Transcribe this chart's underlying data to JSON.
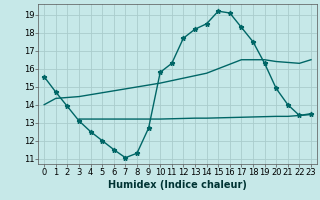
{
  "title": "",
  "xlabel": "Humidex (Indice chaleur)",
  "bg_color": "#c6e8e8",
  "grid_color": "#aacccc",
  "line_color": "#006666",
  "xlim": [
    -0.5,
    23.5
  ],
  "ylim": [
    10.7,
    19.6
  ],
  "xticks": [
    0,
    1,
    2,
    3,
    4,
    5,
    6,
    7,
    8,
    9,
    10,
    11,
    12,
    13,
    14,
    15,
    16,
    17,
    18,
    19,
    20,
    21,
    22,
    23
  ],
  "yticks": [
    11,
    12,
    13,
    14,
    15,
    16,
    17,
    18,
    19
  ],
  "line1_x": [
    0,
    1,
    2,
    3,
    4,
    5,
    6,
    7,
    8,
    9,
    10,
    11,
    12,
    13,
    14,
    15,
    16,
    17,
    18,
    19,
    20,
    21,
    22,
    23
  ],
  "line1_y": [
    15.55,
    14.7,
    13.9,
    13.1,
    12.5,
    12.0,
    11.5,
    11.05,
    11.3,
    12.7,
    15.8,
    16.3,
    17.7,
    18.2,
    18.5,
    19.2,
    19.1,
    18.3,
    17.5,
    16.3,
    14.9,
    14.0,
    13.4,
    13.5
  ],
  "line2_x": [
    0,
    1,
    2,
    3,
    10,
    14,
    17,
    19,
    20,
    21,
    22,
    23
  ],
  "line2_y": [
    14.0,
    14.35,
    14.4,
    14.45,
    15.2,
    15.75,
    16.5,
    16.5,
    16.4,
    16.35,
    16.3,
    16.5
  ],
  "line3_x": [
    3,
    4,
    5,
    9,
    10,
    13,
    14,
    17,
    20,
    21,
    22,
    23
  ],
  "line3_y": [
    13.2,
    13.2,
    13.2,
    13.2,
    13.2,
    13.25,
    13.25,
    13.3,
    13.35,
    13.35,
    13.4,
    13.45
  ],
  "markersize": 3.5,
  "linewidth": 1.0,
  "xlabel_fontsize": 7,
  "tick_fontsize": 6
}
